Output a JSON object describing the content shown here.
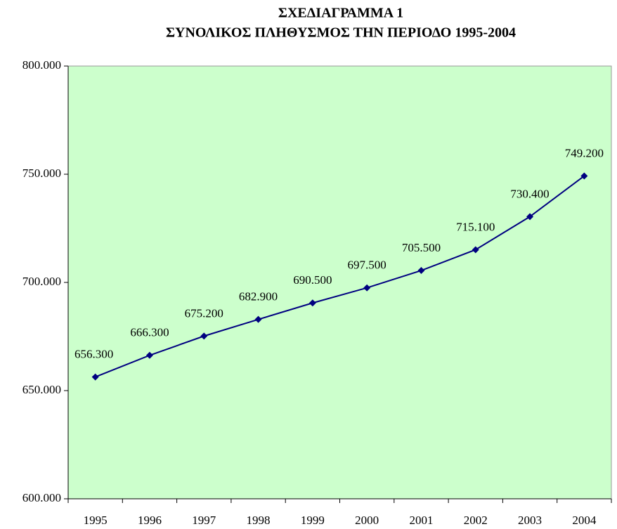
{
  "chart_data": {
    "type": "line",
    "title": "ΣΧΕΔΙΑΓΡΑΜΜΑ 1",
    "subtitle": "ΣΥΝΟΛΙΚΟΣ ΠΛΗΘΥΣΜΟΣ ΤΗΝ ΠΕΡΙΟΔΟ 1995-2004",
    "categories": [
      "1995",
      "1996",
      "1997",
      "1998",
      "1999",
      "2000",
      "2001",
      "2002",
      "2003",
      "2004"
    ],
    "values": [
      656300,
      666300,
      675200,
      682900,
      690500,
      697500,
      705500,
      715100,
      730400,
      749200
    ],
    "value_labels": [
      "656.300",
      "666.300",
      "675.200",
      "682.900",
      "690.500",
      "697.500",
      "705.500",
      "715.100",
      "730.400",
      "749.200"
    ],
    "color": "#000080",
    "plot_background": "#ccffcc",
    "ylim": [
      600000,
      800000
    ],
    "yticks": [
      {
        "value": 600000,
        "label": "600.000"
      },
      {
        "value": 650000,
        "label": "650.000"
      },
      {
        "value": 700000,
        "label": "700.000"
      },
      {
        "value": 750000,
        "label": "750.000"
      },
      {
        "value": 800000,
        "label": "800.000"
      }
    ],
    "grid": false
  }
}
